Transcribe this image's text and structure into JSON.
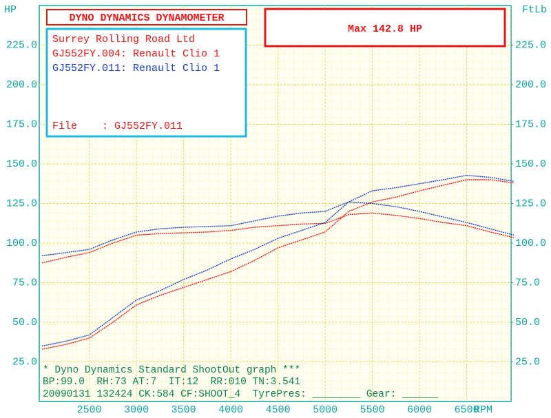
{
  "chart_data": {
    "type": "line",
    "title": "DYNO DYNAMICS DYNAMOMETER",
    "max_label": "Max 142.8 HP",
    "y_label": "HP",
    "y2_label": "FtLb",
    "x_label": "RPM",
    "company": "Surrey Rolling Road Ltd",
    "file_label": "File    : GJ552FY.011",
    "footer": [
      "* Dyno Dynamics Standard ShootOut graph ***",
      "BP:99.0  RH:73 AT:7  IT:12  RR:010 TN:3.541",
      "20090131 132424 CK:584 CF:SHOOT_4  TyrePres: ________ Gear: ______"
    ],
    "x": [
      2000,
      2250,
      2500,
      2750,
      3000,
      3250,
      3500,
      3750,
      4000,
      4250,
      4500,
      4750,
      5000,
      5250,
      5500,
      5750,
      6000,
      6250,
      6500,
      6750,
      7000
    ],
    "series": [
      {
        "name": "GJ552FY.004: Renault Clio 1",
        "color": "#e01818",
        "values": [
          33,
          36,
          40,
          50,
          61,
          67,
          72,
          77,
          82,
          89,
          97,
          102,
          107,
          120,
          126,
          129,
          133,
          136.5,
          140,
          140,
          138
        ],
        "torque": [
          87.5,
          91,
          94,
          100,
          105,
          106,
          106.5,
          107,
          108,
          110,
          111,
          112,
          112.5,
          118,
          119,
          117.5,
          115.5,
          113,
          111,
          107,
          103.5
        ]
      },
      {
        "name": "GJ552FY.011: Renault Clio 1",
        "color": "#1840c0",
        "values": [
          35,
          38,
          42,
          53,
          64,
          70,
          77,
          83,
          90,
          96,
          103,
          108,
          113,
          126,
          133,
          135,
          137.5,
          140,
          142.8,
          141.5,
          139
        ],
        "torque": [
          92,
          94,
          96,
          102,
          107,
          109,
          110,
          110.5,
          111,
          114,
          117,
          119,
          120,
          126,
          125,
          123,
          120,
          116.5,
          113,
          109,
          105
        ]
      }
    ],
    "xlim": [
      1970,
      6970
    ],
    "xticks": [
      2500,
      3000,
      3500,
      4000,
      4500,
      5000,
      5500,
      6000,
      6500
    ],
    "ylim": [
      0,
      250
    ],
    "yticks": [
      {
        "value": 25,
        "label": "25.0"
      },
      {
        "value": 50,
        "label": "50.0"
      },
      {
        "value": 75,
        "label": "75.0"
      },
      {
        "value": 100,
        "label": "100.0"
      },
      {
        "value": 125,
        "label": "125.0"
      },
      {
        "value": 150,
        "label": "150.0"
      },
      {
        "value": 175,
        "label": "175.0"
      },
      {
        "value": 200,
        "label": "200.0"
      },
      {
        "value": 225,
        "label": "225.0"
      }
    ],
    "y2lim": [
      0,
      250
    ],
    "y2ticks": [
      {
        "value": 25,
        "label": "25.0"
      },
      {
        "value": 50,
        "label": "50.0"
      },
      {
        "value": 75,
        "label": "75.0"
      },
      {
        "value": 100,
        "label": "100.0"
      },
      {
        "value": 125,
        "label": "125.0"
      },
      {
        "value": 150,
        "label": "150.0"
      },
      {
        "value": 175,
        "label": "175.0"
      },
      {
        "value": 200,
        "label": "200.0"
      },
      {
        "value": 225,
        "label": "225.0"
      }
    ],
    "grid": true
  }
}
